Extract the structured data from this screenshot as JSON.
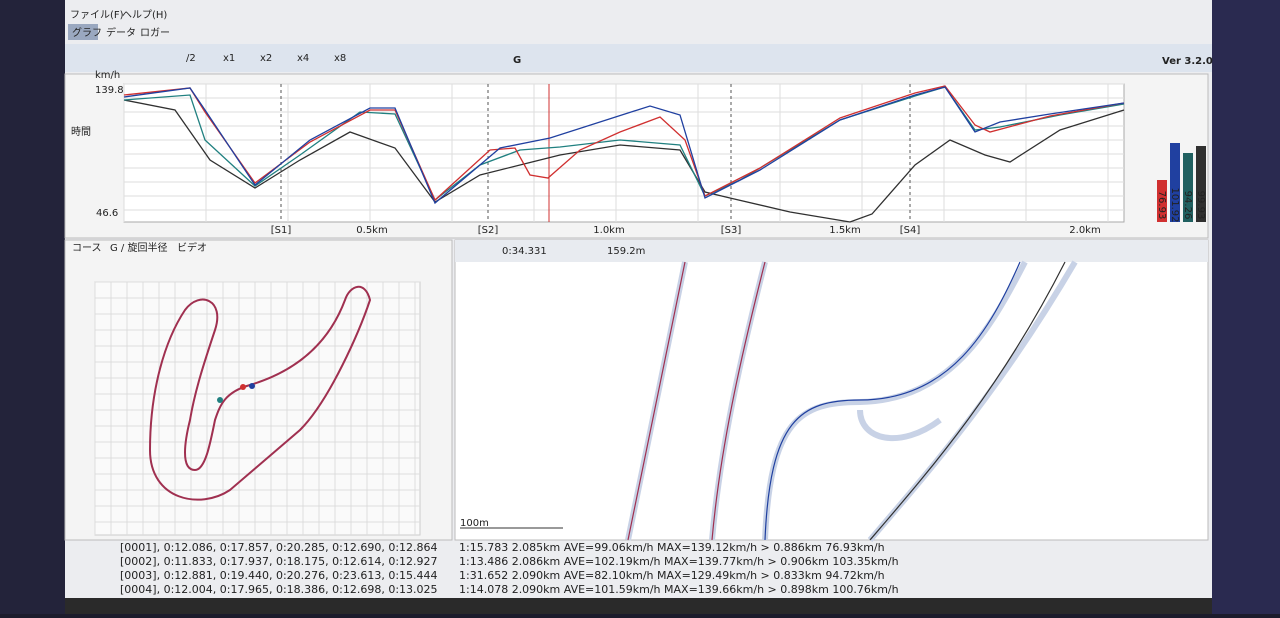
{
  "menu": [
    "ファイル(F)",
    "ヘルプ(H)"
  ],
  "tabs": [
    "グラフ",
    "データ",
    "ロガー"
  ],
  "toolbar": {
    "speeds": [
      "/2",
      "x1",
      "x2",
      "x4",
      "x8"
    ],
    "g": "G",
    "version": "Ver 3.2.0"
  },
  "graph": {
    "unit": "km/h",
    "max": "139.8",
    "min": "46.6",
    "side_tab": "時間",
    "sectors": [
      "[S1]",
      "[S2]",
      "[S3]",
      "[S4]"
    ],
    "distances": [
      "0.5km",
      "1.0km",
      "1.5km",
      "2.0km"
    ],
    "bars": [
      "76.93",
      "101.92",
      "94.26",
      "99.93"
    ]
  },
  "course": {
    "tabs": [
      "コース",
      "G / 旋回半径",
      "ビデオ"
    ]
  },
  "map": {
    "time": "0:34.331",
    "distance": "159.2m",
    "scale": "100m"
  },
  "laps": [
    {
      "id": "[0001]",
      "splits": ", 0:12.086, 0:17.857, 0:20.285, 0:12.690, 0:12.864",
      "summary": "1:15.783 2.085km AVE=99.06km/h MAX=139.12km/h > 0.886km 76.93km/h"
    },
    {
      "id": "[0002]",
      "splits": ", 0:11.833, 0:17.937, 0:18.175, 0:12.614, 0:12.927",
      "summary": "1:13.486 2.086km AVE=102.19km/h MAX=139.77km/h > 0.906km 103.35km/h"
    },
    {
      "id": "[0003]",
      "splits": ", 0:12.881, 0:19.440, 0:20.276, 0:23.613, 0:15.444",
      "summary": "1:31.652 2.090km AVE=82.10km/h MAX=129.49km/h > 0.833km 94.72km/h"
    },
    {
      "id": "[0004]",
      "splits": ", 0:12.004, 0:17.965, 0:18.386, 0:12.698, 0:13.025",
      "summary": "1:14.078 2.090km AVE=101.59km/h MAX=139.66km/h > 0.898km 100.76km/h"
    }
  ]
}
